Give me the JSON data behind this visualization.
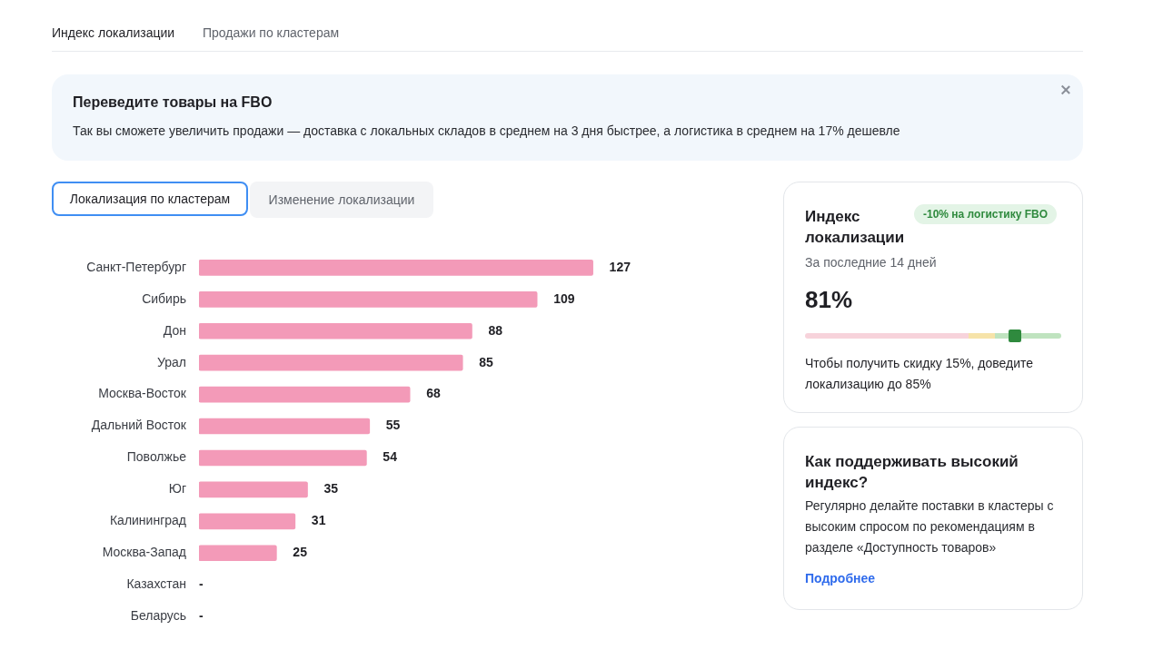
{
  "chart_data": [
    {
      "type": "other",
      "annotations": [
        "Индекс локализации",
        "Продажи по кластерам",
        "Переведите товары на FBO",
        "Так вы сможете увеличить продажи — доставка с локальных складов в среднем на 3 дня быстрее, а логистика в среднем на 17% дешевле"
      ]
    },
    {
      "type": "bar",
      "orientation": "horizontal",
      "categories": [
        "Санкт-Петербург",
        "Сибирь",
        "Дон",
        "Урал",
        "Москва-Восток",
        "Дальний Восток",
        "Поволжье",
        "Юг",
        "Калининград",
        "Москва-Запад",
        "Казахстан",
        "Беларусь"
      ],
      "values": [
        127,
        109,
        88,
        85,
        68,
        55,
        54,
        35,
        31,
        25,
        null,
        null
      ],
      "value_labels": [
        "127",
        "109",
        "88",
        "85",
        "68",
        "55",
        "54",
        "35",
        "31",
        "25",
        "-",
        "-"
      ],
      "color": "#f39ab8",
      "tick_labels": "y",
      "annotations": [
        "Локализация по кластерам",
        "Изменение локализации"
      ]
    },
    {
      "type": "other",
      "title": "Индекс локализации",
      "annotations": [
        "-10% на логистику FBO",
        "За последние 14 дней",
        "81%",
        "Чтобы получить скидку 15%, доведите локализацию до 85%"
      ]
    },
    {
      "type": "other",
      "title": "Как поддерживать высокий индекс?",
      "annotations": [
        "Регулярно делайте поставки в кластеры с высоким спросом по рекомендациям в разделе «Доступность товаров»",
        "Подробнее"
      ]
    }
  ]
}
